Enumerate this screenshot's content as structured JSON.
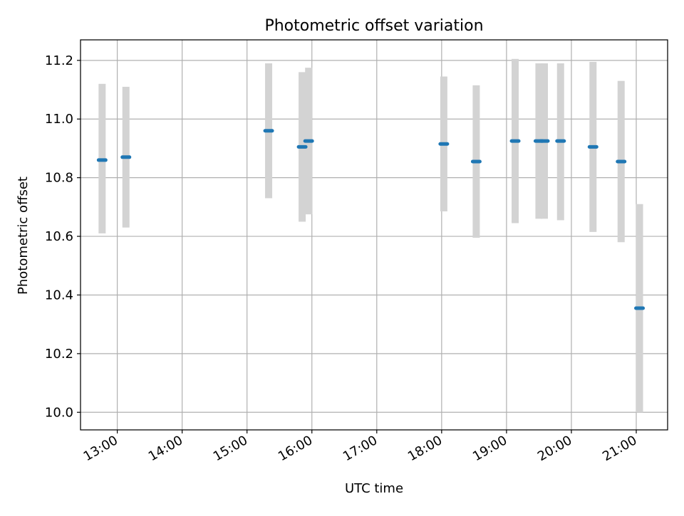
{
  "chart_data": {
    "type": "scatter",
    "title": "Photometric offset variation",
    "xlabel": "UTC time",
    "ylabel": "Photometric offset",
    "ylim": [
      9.94,
      11.27
    ],
    "xlim": [
      "12:26",
      "21:29"
    ],
    "grid": true,
    "x_ticks": [
      "13:00",
      "14:00",
      "15:00",
      "16:00",
      "17:00",
      "18:00",
      "19:00",
      "20:00",
      "21:00"
    ],
    "y_ticks": [
      "10.0",
      "10.2",
      "10.4",
      "10.6",
      "10.8",
      "11.0",
      "11.2"
    ],
    "y_tick_values": [
      10.0,
      10.2,
      10.4,
      10.6,
      10.8,
      11.0,
      11.2
    ],
    "series": [
      {
        "marker_color": "#1f77b4",
        "errorbar_color": "#d3d3d3",
        "points": [
          {
            "x": "12:46",
            "y": 10.86,
            "low": 10.61,
            "high": 11.12
          },
          {
            "x": "13:08",
            "y": 10.87,
            "low": 10.63,
            "high": 11.11
          },
          {
            "x": "15:20",
            "y": 10.96,
            "low": 10.73,
            "high": 11.19
          },
          {
            "x": "15:51",
            "y": 10.905,
            "low": 10.65,
            "high": 11.16
          },
          {
            "x": "15:57",
            "y": 10.925,
            "low": 10.675,
            "high": 11.175
          },
          {
            "x": "18:02",
            "y": 10.915,
            "low": 10.685,
            "high": 11.145
          },
          {
            "x": "18:32",
            "y": 10.855,
            "low": 10.595,
            "high": 11.115
          },
          {
            "x": "19:08",
            "y": 10.925,
            "low": 10.645,
            "high": 11.205
          },
          {
            "x": "19:30",
            "y": 10.925,
            "low": 10.66,
            "high": 11.19
          },
          {
            "x": "19:35",
            "y": 10.925,
            "low": 10.66,
            "high": 11.19
          },
          {
            "x": "19:50",
            "y": 10.925,
            "low": 10.655,
            "high": 11.19
          },
          {
            "x": "20:20",
            "y": 10.905,
            "low": 10.615,
            "high": 11.195
          },
          {
            "x": "20:46",
            "y": 10.855,
            "low": 10.58,
            "high": 11.13
          },
          {
            "x": "21:03",
            "y": 10.355,
            "low": 10.0,
            "high": 10.71
          }
        ]
      }
    ]
  }
}
